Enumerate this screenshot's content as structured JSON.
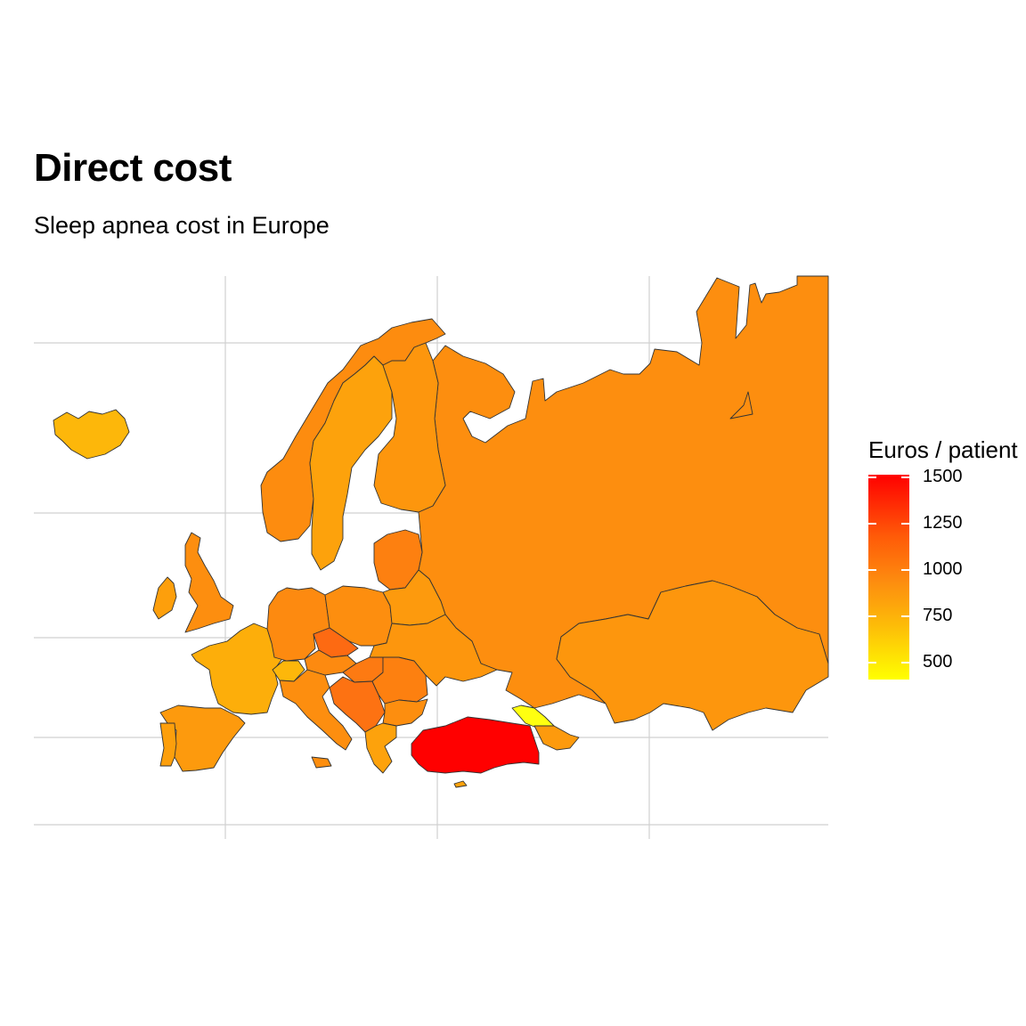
{
  "header": {
    "title": "Direct cost",
    "subtitle": "Sleep apnea cost in Europe"
  },
  "legend": {
    "title": "Euros / patient",
    "ticks": [
      "1500",
      "1250",
      "1000",
      "750",
      "500"
    ],
    "low_color": "#ffff00",
    "high_color": "#ff0000"
  },
  "regions": [
    {
      "name": "Iceland",
      "color": "#fdb70a"
    },
    {
      "name": "Ireland",
      "color": "#fd9f0c"
    },
    {
      "name": "United Kingdom",
      "color": "#fd8e0f"
    },
    {
      "name": "Norway",
      "color": "#fd8c0f"
    },
    {
      "name": "Sweden",
      "color": "#fda20c"
    },
    {
      "name": "Finland",
      "color": "#fd960d"
    },
    {
      "name": "Russia",
      "color": "#fd8e0f"
    },
    {
      "name": "Kazakhstan",
      "color": "#fd960d"
    },
    {
      "name": "France",
      "color": "#fdae0a"
    },
    {
      "name": "Spain",
      "color": "#fd9a0d"
    },
    {
      "name": "Portugal",
      "color": "#fd9f0c"
    },
    {
      "name": "Germany",
      "color": "#fd8a10"
    },
    {
      "name": "Poland",
      "color": "#fd8e0f"
    },
    {
      "name": "Czech Republic",
      "color": "#fd6a12"
    },
    {
      "name": "Hungary",
      "color": "#fd7a12"
    },
    {
      "name": "Italy",
      "color": "#fd8e0f"
    },
    {
      "name": "Switzerland",
      "color": "#fdb70a"
    },
    {
      "name": "Austria",
      "color": "#fd8a10"
    },
    {
      "name": "Serbia",
      "color": "#fd7212"
    },
    {
      "name": "Romania",
      "color": "#fd8010"
    },
    {
      "name": "Bulgaria",
      "color": "#fd8e0f"
    },
    {
      "name": "Greece",
      "color": "#fda20c"
    },
    {
      "name": "Ukraine",
      "color": "#fd960d"
    },
    {
      "name": "Belarus",
      "color": "#fd9a0d"
    },
    {
      "name": "Baltic states",
      "color": "#fd8010"
    },
    {
      "name": "Turkey",
      "color": "#ff0000"
    },
    {
      "name": "Georgia",
      "color": "#ffff10"
    },
    {
      "name": "Armenia/Azerbaijan",
      "color": "#fd9a0d"
    },
    {
      "name": "Cyprus",
      "color": "#fda20c"
    }
  ]
}
